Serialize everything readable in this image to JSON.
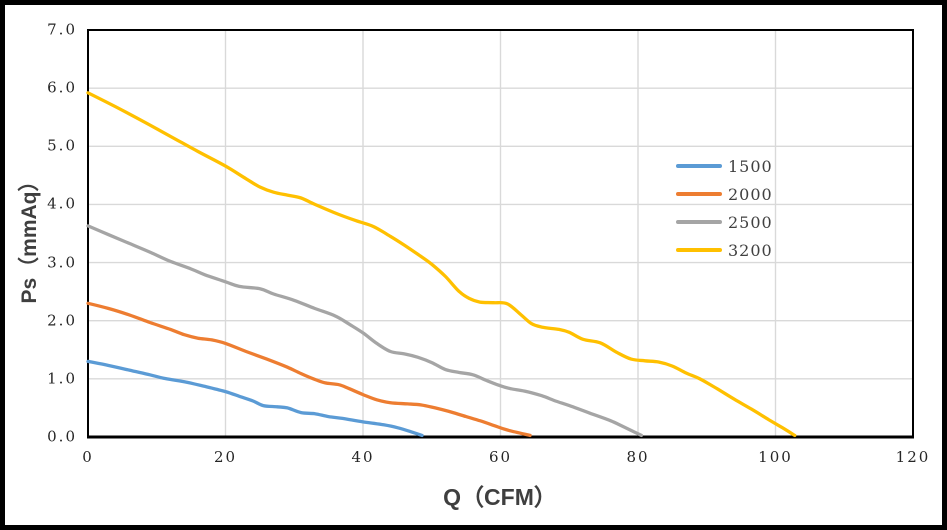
{
  "chart_data": {
    "type": "line",
    "title": "",
    "xlabel": "Q（CFM）",
    "ylabel": "Ps（mmAq）",
    "xlim": [
      0,
      120
    ],
    "ylim": [
      0.0,
      7.0
    ],
    "x_ticks": [
      "0",
      "20",
      "40",
      "60",
      "80",
      "100",
      "120"
    ],
    "y_ticks": [
      "0.0",
      "1.0",
      "2.0",
      "3.0",
      "4.0",
      "5.0",
      "6.0",
      "7.0"
    ],
    "grid": true,
    "legend_position": "inside-right",
    "colors": {
      "grid": "#d9d9d9",
      "axis": "#000000",
      "tick_text": "#262626",
      "title_text": "#3f3f3f",
      "background": "#ffffff",
      "frame": "#000000"
    },
    "series": [
      {
        "name": "1500",
        "color": "#5B9BD5",
        "points": [
          [
            0,
            1.3
          ],
          [
            3,
            1.23
          ],
          [
            6,
            1.15
          ],
          [
            9,
            1.07
          ],
          [
            11,
            1.01
          ],
          [
            14,
            0.95
          ],
          [
            17,
            0.87
          ],
          [
            20,
            0.78
          ],
          [
            22,
            0.7
          ],
          [
            24,
            0.62
          ],
          [
            25.5,
            0.54
          ],
          [
            27.5,
            0.52
          ],
          [
            29,
            0.5
          ],
          [
            31,
            0.42
          ],
          [
            33,
            0.4
          ],
          [
            35,
            0.35
          ],
          [
            37,
            0.32
          ],
          [
            40,
            0.26
          ],
          [
            43,
            0.21
          ],
          [
            45,
            0.16
          ],
          [
            47,
            0.09
          ],
          [
            48.6,
            0.0
          ]
        ]
      },
      {
        "name": "2000",
        "color": "#ED7D31",
        "points": [
          [
            0,
            2.3
          ],
          [
            3,
            2.21
          ],
          [
            6,
            2.1
          ],
          [
            9,
            1.97
          ],
          [
            12,
            1.85
          ],
          [
            14,
            1.76
          ],
          [
            16,
            1.7
          ],
          [
            18,
            1.67
          ],
          [
            20,
            1.61
          ],
          [
            23,
            1.47
          ],
          [
            26,
            1.34
          ],
          [
            29,
            1.2
          ],
          [
            31,
            1.09
          ],
          [
            33,
            0.99
          ],
          [
            34.5,
            0.93
          ],
          [
            36.5,
            0.9
          ],
          [
            38,
            0.83
          ],
          [
            40,
            0.73
          ],
          [
            42,
            0.64
          ],
          [
            44,
            0.59
          ],
          [
            46.5,
            0.57
          ],
          [
            48.5,
            0.55
          ],
          [
            50.5,
            0.5
          ],
          [
            52.5,
            0.44
          ],
          [
            55,
            0.35
          ],
          [
            57,
            0.28
          ],
          [
            59,
            0.2
          ],
          [
            61,
            0.12
          ],
          [
            64.3,
            0.0
          ]
        ]
      },
      {
        "name": "2500",
        "color": "#A5A5A5",
        "points": [
          [
            0,
            3.63
          ],
          [
            3,
            3.48
          ],
          [
            6,
            3.33
          ],
          [
            9,
            3.18
          ],
          [
            12,
            3.02
          ],
          [
            15,
            2.89
          ],
          [
            17,
            2.79
          ],
          [
            20,
            2.67
          ],
          [
            22,
            2.59
          ],
          [
            25,
            2.55
          ],
          [
            27,
            2.46
          ],
          [
            30,
            2.35
          ],
          [
            33,
            2.21
          ],
          [
            36,
            2.08
          ],
          [
            38,
            1.94
          ],
          [
            40,
            1.79
          ],
          [
            42,
            1.61
          ],
          [
            44,
            1.47
          ],
          [
            46,
            1.43
          ],
          [
            48,
            1.37
          ],
          [
            50,
            1.28
          ],
          [
            52,
            1.16
          ],
          [
            54,
            1.11
          ],
          [
            56,
            1.07
          ],
          [
            58,
            0.97
          ],
          [
            60,
            0.88
          ],
          [
            61.5,
            0.83
          ],
          [
            63.5,
            0.79
          ],
          [
            66,
            0.71
          ],
          [
            68,
            0.62
          ],
          [
            70,
            0.54
          ],
          [
            73,
            0.41
          ],
          [
            76,
            0.28
          ],
          [
            78,
            0.17
          ],
          [
            80.5,
            0.0
          ]
        ]
      },
      {
        "name": "3200",
        "color": "#FFC000",
        "points": [
          [
            0,
            5.92
          ],
          [
            4,
            5.68
          ],
          [
            8,
            5.43
          ],
          [
            12,
            5.17
          ],
          [
            16,
            4.91
          ],
          [
            20,
            4.66
          ],
          [
            23,
            4.44
          ],
          [
            25,
            4.3
          ],
          [
            27,
            4.21
          ],
          [
            29,
            4.16
          ],
          [
            31,
            4.11
          ],
          [
            33,
            4.0
          ],
          [
            36,
            3.85
          ],
          [
            39,
            3.72
          ],
          [
            41.5,
            3.62
          ],
          [
            44,
            3.45
          ],
          [
            46,
            3.3
          ],
          [
            48,
            3.14
          ],
          [
            50,
            2.97
          ],
          [
            52,
            2.76
          ],
          [
            54,
            2.5
          ],
          [
            55.5,
            2.38
          ],
          [
            57,
            2.32
          ],
          [
            59,
            2.31
          ],
          [
            61,
            2.29
          ],
          [
            63,
            2.1
          ],
          [
            64.5,
            1.95
          ],
          [
            66,
            1.89
          ],
          [
            68.5,
            1.85
          ],
          [
            70,
            1.8
          ],
          [
            72,
            1.68
          ],
          [
            74.5,
            1.62
          ],
          [
            77,
            1.45
          ],
          [
            79,
            1.34
          ],
          [
            81,
            1.31
          ],
          [
            83,
            1.29
          ],
          [
            85,
            1.22
          ],
          [
            87,
            1.1
          ],
          [
            89,
            1.0
          ],
          [
            91.5,
            0.83
          ],
          [
            94,
            0.65
          ],
          [
            96.5,
            0.48
          ],
          [
            99,
            0.3
          ],
          [
            101,
            0.16
          ],
          [
            102.8,
            0.0
          ]
        ]
      }
    ]
  }
}
